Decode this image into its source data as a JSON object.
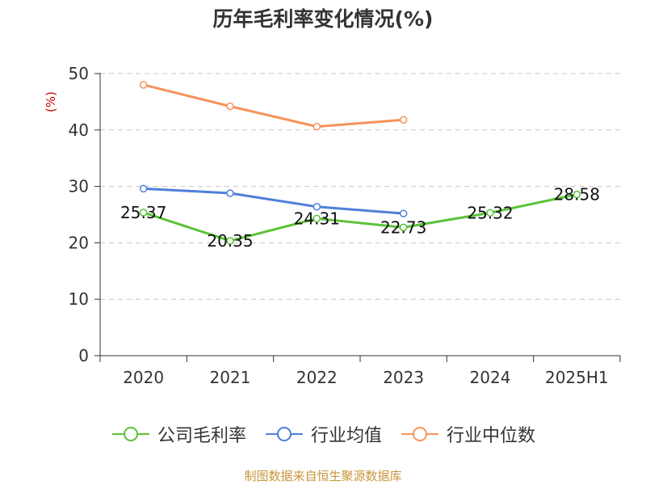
{
  "title": "历年毛利率变化情况(%)",
  "source": "制图数据来自恒生聚源数据库",
  "chart_data": {
    "type": "line",
    "title": "历年毛利率变化情况(%)",
    "ylabel": "(%)",
    "xlabel": "",
    "categories": [
      "2020",
      "2021",
      "2022",
      "2023",
      "2024",
      "2025H1"
    ],
    "ylim": [
      0,
      50
    ],
    "yticks": [
      0,
      10,
      20,
      30,
      40,
      50
    ],
    "grid": true,
    "legend_position": "bottom",
    "series": [
      {
        "name": "公司毛利率",
        "color": "#5bc236",
        "values": [
          25.37,
          20.35,
          24.31,
          22.73,
          25.32,
          28.58
        ],
        "labels": [
          "25.37",
          "20.35",
          "24.31",
          "22.73",
          "25.32",
          "28.58"
        ]
      },
      {
        "name": "行业均值",
        "color": "#4f7fd9",
        "values": [
          29.6,
          28.8,
          26.4,
          25.2,
          null,
          null
        ]
      },
      {
        "name": "行业中位数",
        "color": "#f5935a",
        "values": [
          48.0,
          44.2,
          40.6,
          41.8,
          null,
          null
        ]
      }
    ]
  }
}
